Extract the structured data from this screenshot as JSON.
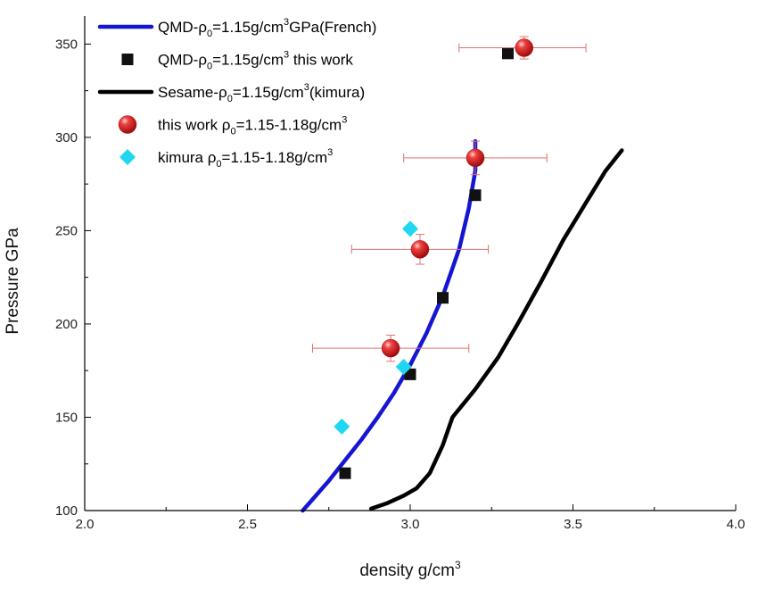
{
  "chart_data": {
    "type": "scatter",
    "xlabel": "density g/cm",
    "xlabel_sup": "3",
    "ylabel": "Pressure GPa",
    "xlim": [
      2.0,
      4.0
    ],
    "ylim": [
      100,
      365
    ],
    "x_ticks": [
      "2.0",
      "2.5",
      "3.0",
      "3.5",
      "4.0"
    ],
    "y_ticks": [
      "100",
      "150",
      "200",
      "250",
      "300",
      "350"
    ],
    "legend_position": "top-left",
    "series": [
      {
        "kind": "line",
        "color": "#1515d4",
        "legend": [
          "QMD-ρ",
          "0",
          "=1.15g/cm",
          "3",
          "GPa(French)"
        ],
        "points": [
          [
            2.67,
            100
          ],
          [
            2.7,
            106
          ],
          [
            2.75,
            116
          ],
          [
            2.8,
            127
          ],
          [
            2.85,
            138
          ],
          [
            2.9,
            150
          ],
          [
            2.95,
            163
          ],
          [
            3.0,
            178
          ],
          [
            3.05,
            195
          ],
          [
            3.1,
            215
          ],
          [
            3.15,
            240
          ],
          [
            3.18,
            262
          ],
          [
            3.2,
            282
          ],
          [
            3.2,
            298
          ]
        ]
      },
      {
        "kind": "scatter",
        "marker": "square",
        "color": "#111111",
        "legend": [
          "QMD-ρ",
          "0",
          "=1.15g/cm",
          "3",
          " this work"
        ],
        "points": [
          [
            2.8,
            120
          ],
          [
            3.0,
            173
          ],
          [
            3.1,
            214
          ],
          [
            3.2,
            269
          ],
          [
            3.3,
            345
          ]
        ]
      },
      {
        "kind": "line",
        "color": "#000000",
        "legend": [
          "Sesame-ρ",
          "0",
          "=1.15g/cm",
          "3",
          "(kimura)"
        ],
        "points": [
          [
            2.88,
            101
          ],
          [
            2.93,
            104
          ],
          [
            2.98,
            108
          ],
          [
            3.02,
            112
          ],
          [
            3.06,
            120
          ],
          [
            3.1,
            135
          ],
          [
            3.13,
            150
          ],
          [
            3.2,
            165
          ],
          [
            3.27,
            182
          ],
          [
            3.33,
            200
          ],
          [
            3.4,
            222
          ],
          [
            3.47,
            245
          ],
          [
            3.54,
            265
          ],
          [
            3.6,
            282
          ],
          [
            3.65,
            293
          ]
        ]
      },
      {
        "kind": "scatter",
        "marker": "sphere",
        "color": "#e21b1b",
        "legend": [
          "this work ρ",
          "0",
          "=1.15-1.18g/cm",
          "3"
        ],
        "points": [
          [
            2.94,
            187
          ],
          [
            3.03,
            240
          ],
          [
            3.2,
            289
          ],
          [
            3.35,
            348
          ]
        ],
        "x_error": [
          [
            2.7,
            3.18
          ],
          [
            2.82,
            3.24
          ],
          [
            2.98,
            3.42
          ],
          [
            3.15,
            3.54
          ]
        ],
        "y_error": [
          [
            180,
            194
          ],
          [
            232,
            248
          ],
          [
            280,
            298
          ],
          [
            342,
            354
          ]
        ]
      },
      {
        "kind": "scatter",
        "marker": "diamond",
        "color": "#1fd8f0",
        "legend": [
          "kimura ρ",
          "0",
          "=1.15-1.18g/cm",
          "3"
        ],
        "points": [
          [
            2.79,
            145
          ],
          [
            2.98,
            177
          ],
          [
            3.0,
            251
          ]
        ]
      }
    ]
  }
}
